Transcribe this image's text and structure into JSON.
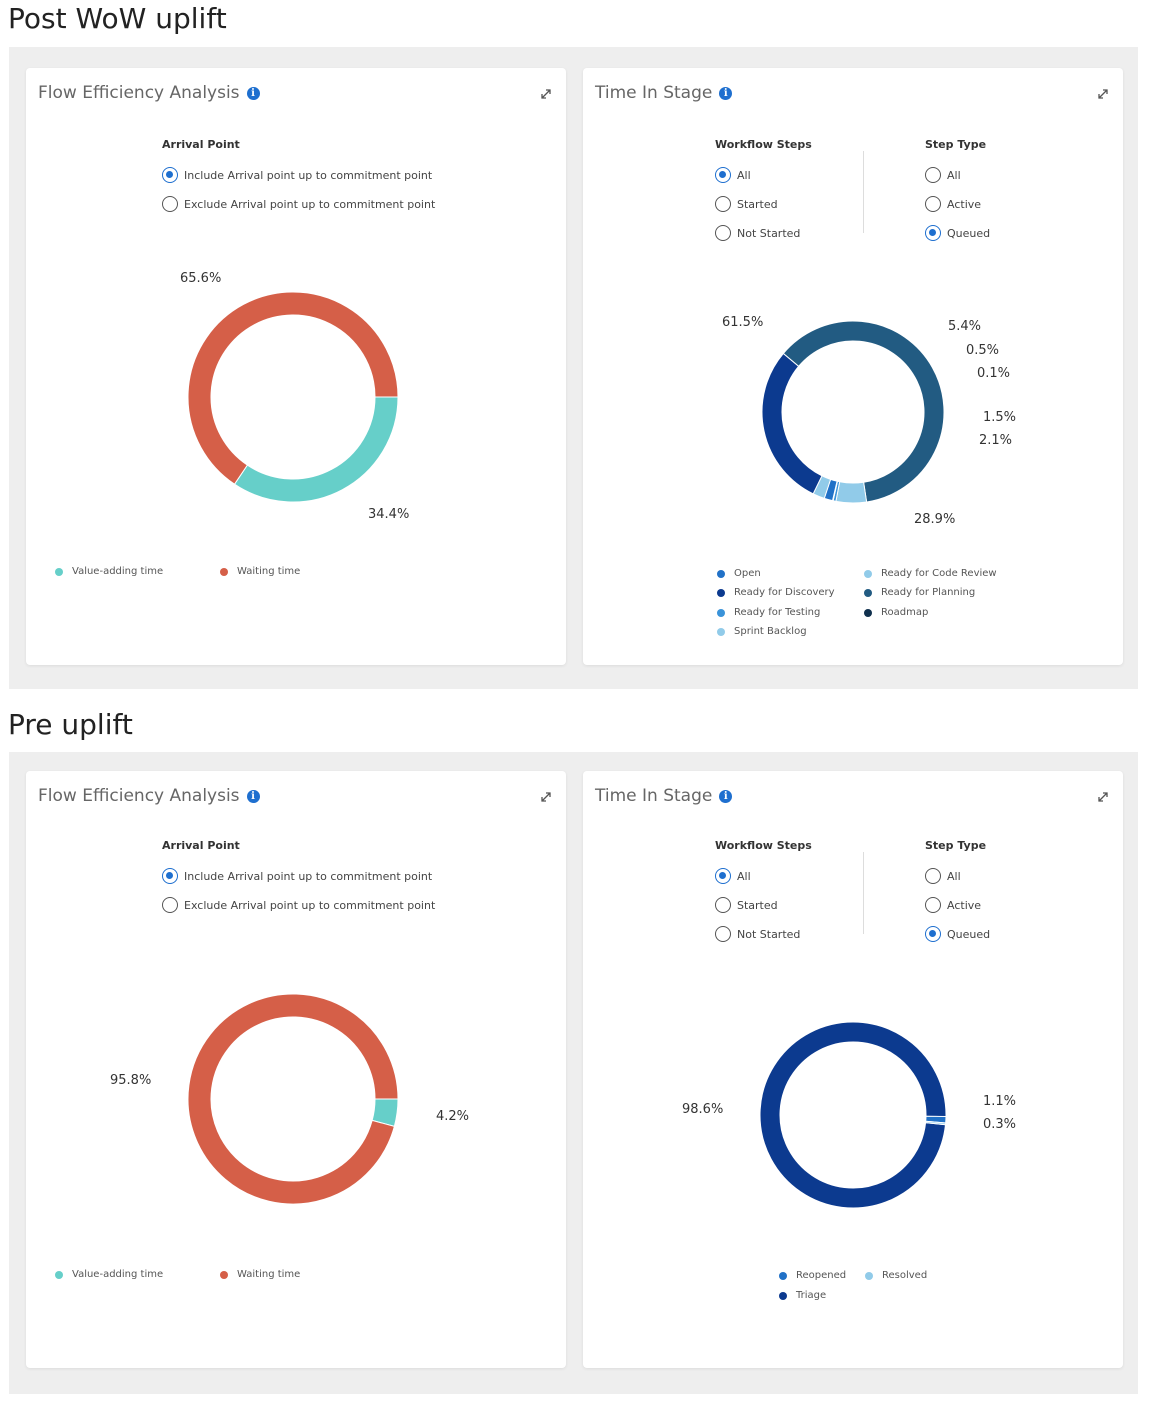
{
  "sections": {
    "post": {
      "title": "Post WoW uplift"
    },
    "pre": {
      "title": "Pre uplift"
    }
  },
  "panels": {
    "flow_title": "Flow Efficiency Analysis",
    "time_title": "Time In Stage",
    "info_icon": "i"
  },
  "flow_controls": {
    "group_label": "Arrival Point",
    "options": [
      "Include Arrival point up to commitment point",
      "Exclude Arrival point up to commitment point"
    ],
    "selected": "Include Arrival point up to commitment point"
  },
  "time_controls": {
    "workflow_label": "Workflow Steps",
    "workflow_options": [
      "All",
      "Started",
      "Not Started"
    ],
    "workflow_selected": "All",
    "steptype_label": "Step Type",
    "steptype_options": [
      "All",
      "Active",
      "Queued"
    ],
    "steptype_selected": "Queued"
  },
  "colors": {
    "value_adding": "#66cfc9",
    "waiting": "#d55f48",
    "open": "#2171c7",
    "ready_for_discovery": "#0c3a8f",
    "ready_for_testing": "#3a93d9",
    "sprint_backlog": "#91cbe9",
    "ready_for_code_review": "#91cbe9",
    "ready_for_planning": "#225b82",
    "roadmap": "#10304e",
    "reopened": "#2171c7",
    "resolved": "#91cbe9",
    "triage": "#0c3a8f"
  },
  "flow_legend": {
    "value_adding": "Value-adding time",
    "waiting": "Waiting time"
  },
  "chart_data": [
    {
      "type": "pie",
      "panel": "Flow Efficiency Analysis",
      "section": "Post WoW uplift",
      "slices": [
        {
          "label": "Value-adding time",
          "value": 34.4,
          "display": "34.4%"
        },
        {
          "label": "Waiting time",
          "value": 65.6,
          "display": "65.6%"
        }
      ]
    },
    {
      "type": "pie",
      "panel": "Time In Stage",
      "section": "Post WoW uplift",
      "slices": [
        {
          "value": 61.5,
          "display": "61.5%"
        },
        {
          "value": 5.4,
          "display": "5.4%"
        },
        {
          "value": 0.5,
          "display": "0.5%"
        },
        {
          "value": 0.1,
          "display": "0.1%"
        },
        {
          "value": 1.5,
          "display": "1.5%"
        },
        {
          "value": 2.1,
          "display": "2.1%"
        },
        {
          "value": 28.9,
          "display": "28.9%"
        }
      ],
      "legend": [
        "Open",
        "Ready for Discovery",
        "Ready for Testing",
        "Sprint Backlog",
        "Ready for Code Review",
        "Ready for Planning",
        "Roadmap"
      ]
    },
    {
      "type": "pie",
      "panel": "Flow Efficiency Analysis",
      "section": "Pre uplift",
      "slices": [
        {
          "label": "Value-adding time",
          "value": 4.2,
          "display": "4.2%"
        },
        {
          "label": "Waiting time",
          "value": 95.8,
          "display": "95.8%"
        }
      ]
    },
    {
      "type": "pie",
      "panel": "Time In Stage",
      "section": "Pre uplift",
      "slices": [
        {
          "value": 98.6,
          "display": "98.6%"
        },
        {
          "value": 1.1,
          "display": "1.1%"
        },
        {
          "value": 0.3,
          "display": "0.3%"
        }
      ],
      "legend": [
        "Reopened",
        "Triage",
        "Resolved"
      ]
    }
  ]
}
